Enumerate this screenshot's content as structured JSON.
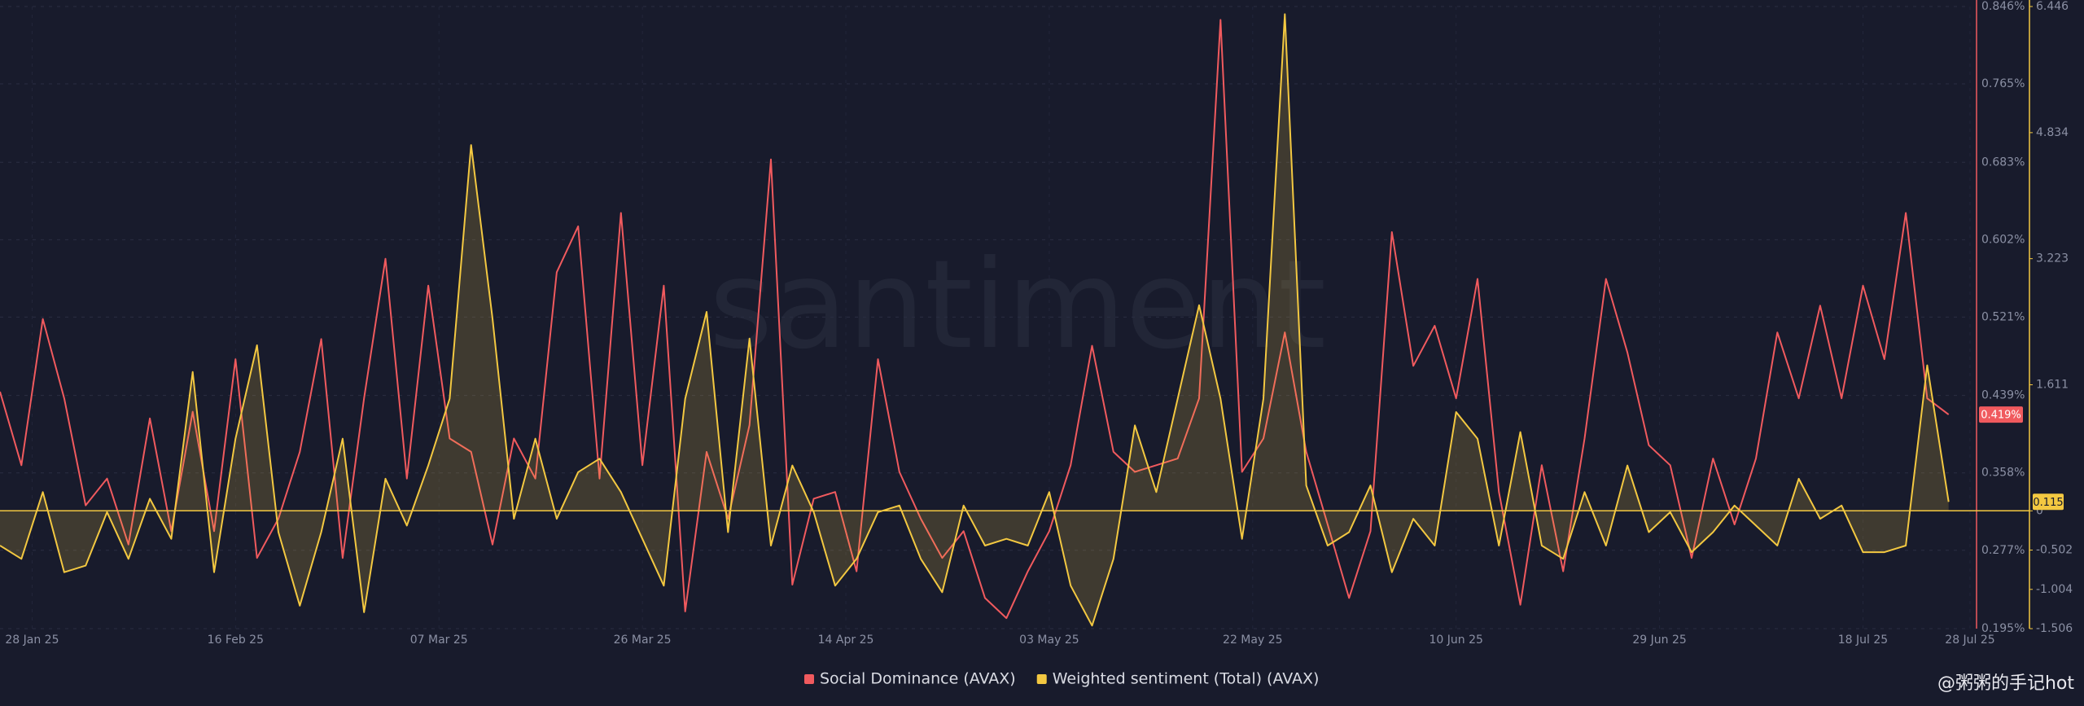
{
  "chart_data": {
    "type": "line",
    "watermark": "santiment",
    "footer": "@粥粥的手记hot",
    "x": [
      "2025-01-25",
      "2025-01-27",
      "2025-01-29",
      "2025-01-31",
      "2025-02-02",
      "2025-02-04",
      "2025-02-06",
      "2025-02-08",
      "2025-02-10",
      "2025-02-12",
      "2025-02-14",
      "2025-02-16",
      "2025-02-18",
      "2025-02-20",
      "2025-02-22",
      "2025-02-24",
      "2025-02-26",
      "2025-02-28",
      "2025-03-02",
      "2025-03-04",
      "2025-03-06",
      "2025-03-08",
      "2025-03-10",
      "2025-03-12",
      "2025-03-14",
      "2025-03-16",
      "2025-03-18",
      "2025-03-20",
      "2025-03-22",
      "2025-03-24",
      "2025-03-26",
      "2025-03-28",
      "2025-03-30",
      "2025-04-01",
      "2025-04-03",
      "2025-04-05",
      "2025-04-07",
      "2025-04-09",
      "2025-04-11",
      "2025-04-13",
      "2025-04-15",
      "2025-04-17",
      "2025-04-19",
      "2025-04-21",
      "2025-04-23",
      "2025-04-25",
      "2025-04-27",
      "2025-04-29",
      "2025-05-01",
      "2025-05-03",
      "2025-05-05",
      "2025-05-07",
      "2025-05-09",
      "2025-05-11",
      "2025-05-13",
      "2025-05-15",
      "2025-05-17",
      "2025-05-19",
      "2025-05-21",
      "2025-05-23",
      "2025-05-25",
      "2025-05-27",
      "2025-05-29",
      "2025-05-31",
      "2025-06-02",
      "2025-06-04",
      "2025-06-06",
      "2025-06-08",
      "2025-06-10",
      "2025-06-12",
      "2025-06-14",
      "2025-06-16",
      "2025-06-18",
      "2025-06-20",
      "2025-06-22",
      "2025-06-24",
      "2025-06-26",
      "2025-06-28",
      "2025-06-30",
      "2025-07-02",
      "2025-07-04",
      "2025-07-06",
      "2025-07-08",
      "2025-07-10",
      "2025-07-12",
      "2025-07-14",
      "2025-07-16",
      "2025-07-18",
      "2025-07-20",
      "2025-07-22",
      "2025-07-24",
      "2025-07-26"
    ],
    "xlim": [
      "2025-01-25",
      "2025-07-28"
    ],
    "xticks": [
      {
        "value": "2025-01-28",
        "label": "28 Jan 25"
      },
      {
        "value": "2025-02-16",
        "label": "16 Feb 25"
      },
      {
        "value": "2025-03-07",
        "label": "07 Mar 25"
      },
      {
        "value": "2025-03-26",
        "label": "26 Mar 25"
      },
      {
        "value": "2025-04-14",
        "label": "14 Apr 25"
      },
      {
        "value": "2025-05-03",
        "label": "03 May 25"
      },
      {
        "value": "2025-05-22",
        "label": "22 May 25"
      },
      {
        "value": "2025-06-10",
        "label": "10 Jun 25"
      },
      {
        "value": "2025-06-29",
        "label": "29 Jun 25"
      },
      {
        "value": "2025-07-18",
        "label": "18 Jul 25"
      },
      {
        "value": "2025-07-28",
        "label": "28 Jul 25"
      }
    ],
    "ylim": [
      0.195,
      0.846
    ],
    "yticks": [
      {
        "value": 0.195,
        "label": "0.195%"
      },
      {
        "value": 0.277,
        "label": "0.277%"
      },
      {
        "value": 0.358,
        "label": "0.358%"
      },
      {
        "value": 0.439,
        "label": "0.439%"
      },
      {
        "value": 0.521,
        "label": "0.521%"
      },
      {
        "value": 0.602,
        "label": "0.602%"
      },
      {
        "value": 0.683,
        "label": "0.683%"
      },
      {
        "value": 0.765,
        "label": "0.765%"
      },
      {
        "value": 0.846,
        "label": "0.846%"
      }
    ],
    "y2lim": [
      -1.506,
      6.446
    ],
    "y2ticks": [
      -1.506,
      -1.004,
      -0.502,
      0,
      1.611,
      3.223,
      4.834,
      6.446
    ],
    "grid": true,
    "legend": "bottom",
    "series": [
      {
        "name": "Social Dominance (AVAX)",
        "color": "#f05a5e",
        "axis": "y",
        "last_label": "0.419%",
        "values": [
          0.443,
          0.366,
          0.519,
          0.436,
          0.324,
          0.352,
          0.283,
          0.415,
          0.297,
          0.422,
          0.297,
          0.477,
          0.269,
          0.31,
          0.38,
          0.498,
          0.269,
          0.436,
          0.582,
          0.352,
          0.554,
          0.394,
          0.38,
          0.283,
          0.394,
          0.352,
          0.568,
          0.616,
          0.352,
          0.63,
          0.366,
          0.554,
          0.213,
          0.38,
          0.31,
          0.408,
          0.686,
          0.241,
          0.331,
          0.338,
          0.255,
          0.477,
          0.359,
          0.31,
          0.269,
          0.297,
          0.227,
          0.206,
          0.255,
          0.297,
          0.366,
          0.491,
          0.38,
          0.359,
          0.366,
          0.373,
          0.436,
          0.832,
          0.359,
          0.394,
          0.505,
          0.38,
          0.304,
          0.227,
          0.297,
          0.61,
          0.47,
          0.512,
          0.436,
          0.561,
          0.338,
          0.22,
          0.366,
          0.255,
          0.394,
          0.561,
          0.484,
          0.387,
          0.366,
          0.269,
          0.373,
          0.304,
          0.373,
          0.505,
          0.436,
          0.533,
          0.436,
          0.554,
          0.477,
          0.63,
          0.436,
          0.419
        ]
      },
      {
        "name": "Weighted sentiment (Total) (AVAX)",
        "color": "#f3c841",
        "axis": "y2",
        "last_label": "0.115",
        "values": [
          -0.444,
          -0.614,
          0.239,
          -0.785,
          -0.7,
          -0.017,
          -0.614,
          0.154,
          -0.358,
          1.775,
          -0.785,
          0.922,
          2.116,
          -0.273,
          -1.212,
          -0.273,
          0.922,
          -1.297,
          0.41,
          -0.188,
          0.58,
          1.433,
          4.676,
          2.457,
          -0.102,
          0.922,
          -0.102,
          0.495,
          0.666,
          0.239,
          -0.358,
          -0.956,
          1.433,
          2.543,
          -0.273,
          2.201,
          -0.444,
          0.58,
          -0.017,
          -0.956,
          -0.614,
          -0.017,
          0.068,
          -0.614,
          -1.041,
          0.068,
          -0.444,
          -0.358,
          -0.444,
          0.239,
          -0.956,
          -1.468,
          -0.614,
          1.092,
          0.239,
          1.433,
          2.628,
          1.433,
          -0.358,
          1.433,
          6.348,
          0.324,
          -0.444,
          -0.273,
          0.324,
          -0.785,
          -0.102,
          -0.444,
          1.263,
          0.922,
          -0.444,
          1.007,
          -0.444,
          -0.614,
          0.239,
          -0.444,
          0.58,
          -0.273,
          -0.017,
          -0.529,
          -0.273,
          0.068,
          -0.188,
          -0.444,
          0.41,
          -0.102,
          0.068,
          -0.529,
          -0.529,
          -0.444,
          1.86,
          0.115
        ]
      }
    ]
  }
}
